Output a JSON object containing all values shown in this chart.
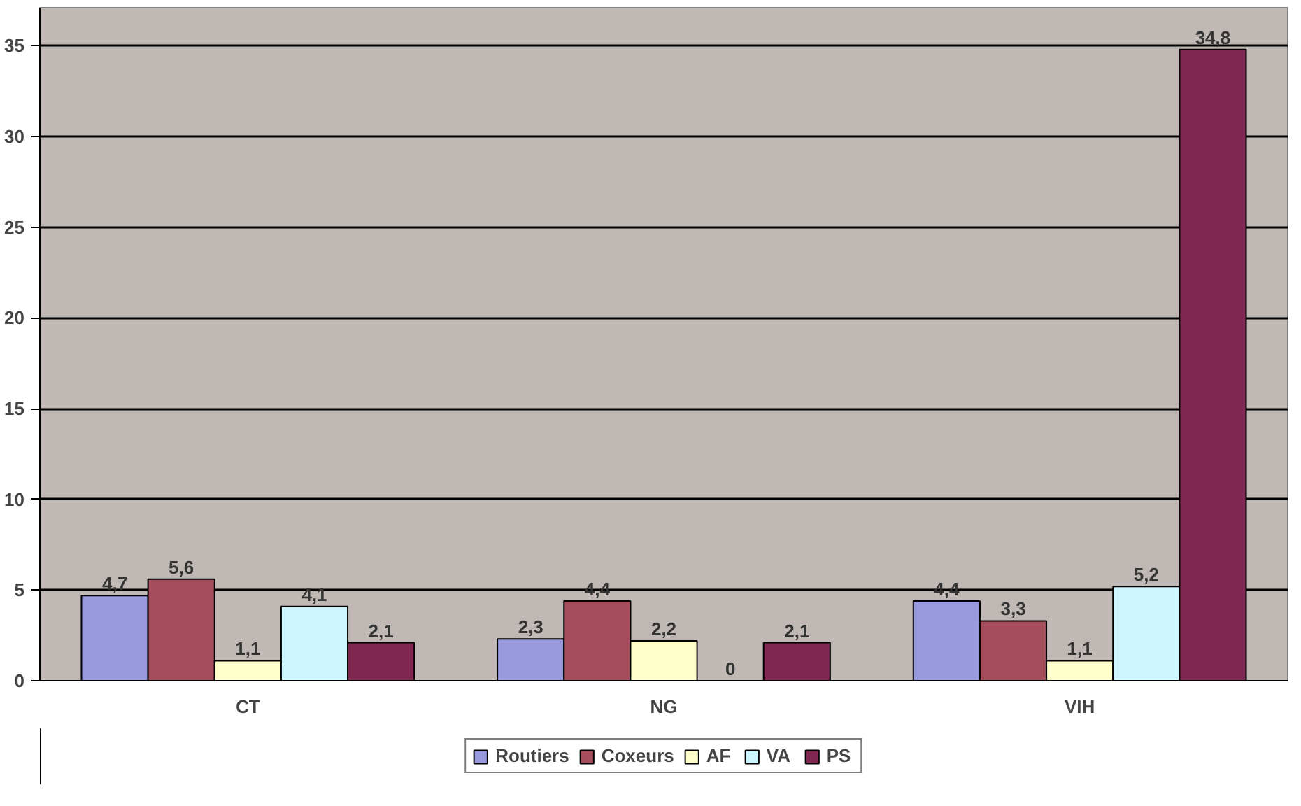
{
  "chart_data": {
    "type": "bar",
    "categories": [
      "CT",
      "NG",
      "VIH"
    ],
    "series": [
      {
        "name": "Routiers",
        "color": "#9999dd",
        "values": [
          4.7,
          2.3,
          4.4
        ],
        "value_labels": [
          "4,7",
          "2,3",
          "4,4"
        ]
      },
      {
        "name": "Coxeurs",
        "color": "#a64d5c",
        "values": [
          5.6,
          4.4,
          3.3
        ],
        "value_labels": [
          "5,6",
          "4,4",
          "3,3"
        ]
      },
      {
        "name": "AF",
        "color": "#ffffcc",
        "values": [
          1.1,
          2.2,
          1.1
        ],
        "value_labels": [
          "1,1",
          "2,2",
          "1,1"
        ]
      },
      {
        "name": "VA",
        "color": "#ccf5ff",
        "values": [
          4.1,
          0,
          5.2
        ],
        "value_labels": [
          "4,1",
          "0",
          "5,2"
        ]
      },
      {
        "name": "PS",
        "color": "#7f2651",
        "values": [
          2.1,
          2.1,
          34.8
        ],
        "value_labels": [
          "2,1",
          "2,1",
          "34,8"
        ]
      }
    ],
    "ylim": [
      0,
      35
    ],
    "yticks": [
      0,
      5,
      10,
      15,
      20,
      25,
      30,
      35
    ],
    "grid": "y",
    "legend": "bottom"
  }
}
